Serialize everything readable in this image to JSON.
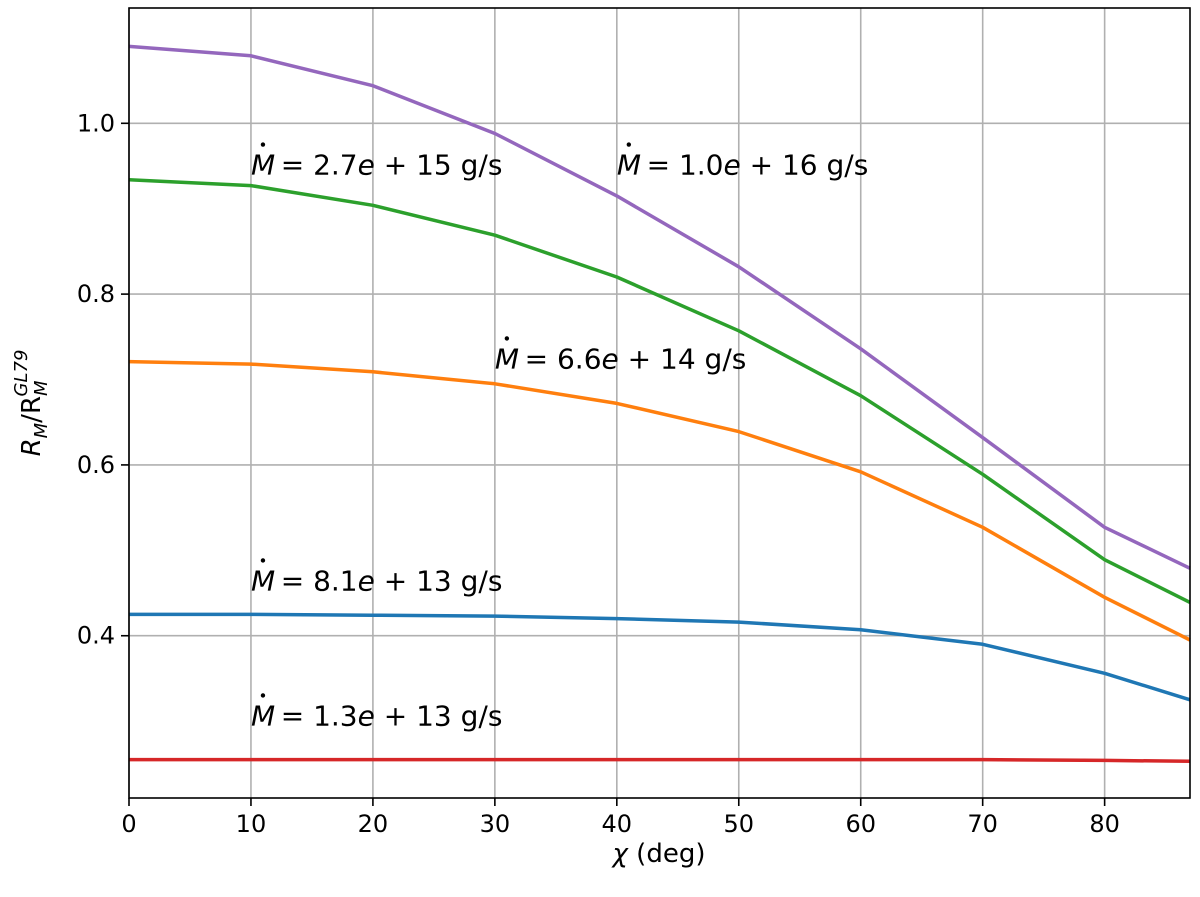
{
  "chart_data": {
    "type": "line",
    "title": "",
    "xlabel": "χ (deg)",
    "ylabel": "R_M/R_M^GL79",
    "xlim": [
      0,
      87
    ],
    "ylim": [
      0.21,
      1.135
    ],
    "grid": true,
    "xticks": [
      0,
      10,
      20,
      30,
      40,
      50,
      60,
      70,
      80
    ],
    "yticks": [
      0.4,
      0.6,
      0.8,
      1.0
    ],
    "xtick_labels": [
      "0",
      "10",
      "20",
      "30",
      "40",
      "50",
      "60",
      "70",
      "80"
    ],
    "ytick_labels": [
      "0.4",
      "0.6",
      "0.8",
      "1.0"
    ],
    "x": [
      0,
      10,
      20,
      30,
      40,
      50,
      60,
      70,
      80,
      87
    ],
    "series": [
      {
        "name": "1.3e+13",
        "color": "#d62728",
        "values": [
          0.255,
          0.255,
          0.255,
          0.255,
          0.255,
          0.255,
          0.255,
          0.255,
          0.254,
          0.253
        ]
      },
      {
        "name": "8.1e+13",
        "color": "#1f77b4",
        "values": [
          0.425,
          0.425,
          0.424,
          0.423,
          0.42,
          0.416,
          0.407,
          0.39,
          0.356,
          0.325
        ]
      },
      {
        "name": "6.6e+14",
        "color": "#ff7f0e",
        "values": [
          0.721,
          0.718,
          0.709,
          0.695,
          0.672,
          0.639,
          0.592,
          0.527,
          0.445,
          0.395
        ]
      },
      {
        "name": "2.7e+15",
        "color": "#2ca02c",
        "values": [
          0.934,
          0.927,
          0.904,
          0.869,
          0.82,
          0.757,
          0.681,
          0.589,
          0.489,
          0.439
        ]
      },
      {
        "name": "1.0e+16",
        "color": "#9467bd",
        "values": [
          1.09,
          1.079,
          1.044,
          0.988,
          0.915,
          0.832,
          0.736,
          0.632,
          0.527,
          0.479
        ]
      }
    ],
    "annotations": [
      {
        "prefix": "= 2.7",
        "e": "e",
        "suffix": " + 15 g/s",
        "x": 10,
        "y": 0.94
      },
      {
        "prefix": "= 1.0",
        "e": "e",
        "suffix": " + 16 g/s",
        "x": 40,
        "y": 0.94
      },
      {
        "prefix": "= 6.6",
        "e": "e",
        "suffix": " + 14 g/s",
        "x": 30,
        "y": 0.713
      },
      {
        "prefix": "= 8.1",
        "e": "e",
        "suffix": " + 13 g/s",
        "x": 10,
        "y": 0.453
      },
      {
        "prefix": "= 1.3",
        "e": "e",
        "suffix": " + 13 g/s",
        "x": 10,
        "y": 0.295
      }
    ]
  },
  "labels": {
    "ylabel_main": "R",
    "ylabel_sub1": "M",
    "ylabel_slash": "/R",
    "ylabel_sub2": "M",
    "ylabel_sup": "GL79",
    "xlabel_chi": "χ",
    "xlabel_unit": " (deg)",
    "mdot": "M"
  }
}
